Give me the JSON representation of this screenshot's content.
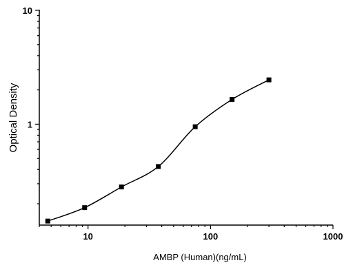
{
  "chart_data": {
    "type": "scatter",
    "title": "",
    "xlabel": "AMBP (Human)(ng/mL)",
    "ylabel": "Optical Density",
    "x_scale": "log",
    "y_scale": "log",
    "xlim": [
      4,
      1000
    ],
    "ylim": [
      0.13,
      10
    ],
    "x_ticks": [
      {
        "value": 10,
        "label": "10"
      },
      {
        "value": 100,
        "label": "100"
      },
      {
        "value": 1000,
        "label": "1000"
      }
    ],
    "y_ticks": [
      {
        "value": 1,
        "label": "1"
      },
      {
        "value": 10,
        "label": "10"
      }
    ],
    "grid": false,
    "legend": "none",
    "fit": "4PL",
    "marker": "square",
    "color": "#000000",
    "points": [
      {
        "x": 4.69,
        "y": 0.141
      },
      {
        "x": 9.38,
        "y": 0.185
      },
      {
        "x": 18.75,
        "y": 0.281
      },
      {
        "x": 37.5,
        "y": 0.425
      },
      {
        "x": 75,
        "y": 0.95
      },
      {
        "x": 150,
        "y": 1.65
      },
      {
        "x": 300,
        "y": 2.45
      }
    ]
  }
}
